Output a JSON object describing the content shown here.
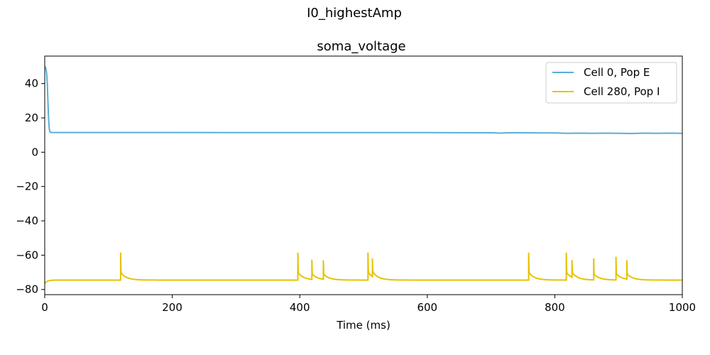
{
  "chart_data": {
    "type": "line",
    "suptitle": "I0_highestAmp",
    "title": "soma_voltage",
    "xlabel": "Time (ms)",
    "ylabel": "",
    "xlim": [
      0,
      1000
    ],
    "ylim": [
      -83,
      56
    ],
    "xticks": [
      0,
      200,
      400,
      600,
      800,
      1000
    ],
    "yticks": [
      -80,
      -60,
      -40,
      -20,
      0,
      20,
      40
    ],
    "xtick_labels": [
      "0",
      "200",
      "400",
      "600",
      "800",
      "1000"
    ],
    "ytick_labels": [
      "−80",
      "−60",
      "−40",
      "−20",
      "0",
      "20",
      "40"
    ],
    "grid": false,
    "legend_position": "top-right",
    "series": [
      {
        "name": "Cell 0, Pop E",
        "color": "#5aaed6",
        "x": [
          0,
          1,
          2,
          3,
          4,
          5,
          6,
          7,
          8,
          10,
          15,
          50,
          100,
          200,
          300,
          400,
          500,
          600,
          700,
          715,
          730,
          750,
          800,
          820,
          840,
          860,
          880,
          900,
          920,
          940,
          960,
          980,
          1000
        ],
        "y": [
          50,
          49.5,
          48.5,
          46,
          40,
          30,
          20,
          14,
          12,
          11.5,
          11.5,
          11.5,
          11.5,
          11.5,
          11.4,
          11.4,
          11.4,
          11.4,
          11.3,
          11.1,
          11.3,
          11.3,
          11.2,
          11.0,
          11.1,
          11.0,
          11.1,
          11.0,
          10.9,
          11.1,
          11.0,
          11.1,
          11.0
        ]
      },
      {
        "name": "Cell 280, Pop I",
        "color": "#e6c200",
        "spike_times": [
          119,
          397,
          419,
          437,
          507,
          514,
          759,
          818,
          827,
          861,
          896,
          913
        ],
        "spike_peaks": [
          -58.5,
          -58.5,
          -63,
          -63.5,
          -58.5,
          -64,
          -58.5,
          -58.5,
          -64.5,
          -62,
          -61,
          -63.5
        ],
        "rest": -74.5,
        "start": -76.5
      }
    ]
  }
}
